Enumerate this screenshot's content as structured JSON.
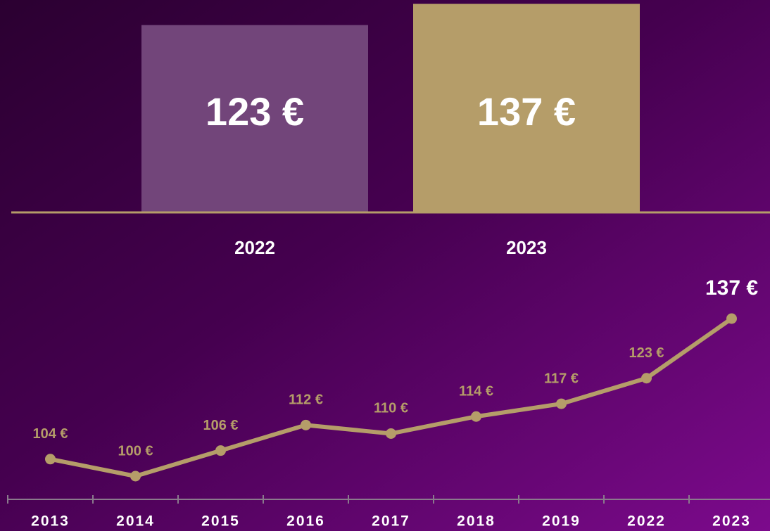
{
  "chart_data": [
    {
      "type": "bar",
      "categories": [
        "2022",
        "2023"
      ],
      "values": [
        123,
        137
      ],
      "value_labels": [
        "123 €",
        "137 €"
      ],
      "colors": [
        "#72457a",
        "#b59d69"
      ]
    },
    {
      "type": "line",
      "categories": [
        "2013",
        "2014",
        "2015",
        "2016",
        "2017",
        "2018",
        "2019",
        "2022",
        "2023"
      ],
      "values": [
        104,
        100,
        106,
        112,
        110,
        114,
        117,
        123,
        137
      ],
      "value_labels": [
        "104 €",
        "100 €",
        "106 €",
        "112 €",
        "110 €",
        "114 €",
        "117 €",
        "123 €",
        "137 €"
      ],
      "color": "#b59d69"
    }
  ]
}
